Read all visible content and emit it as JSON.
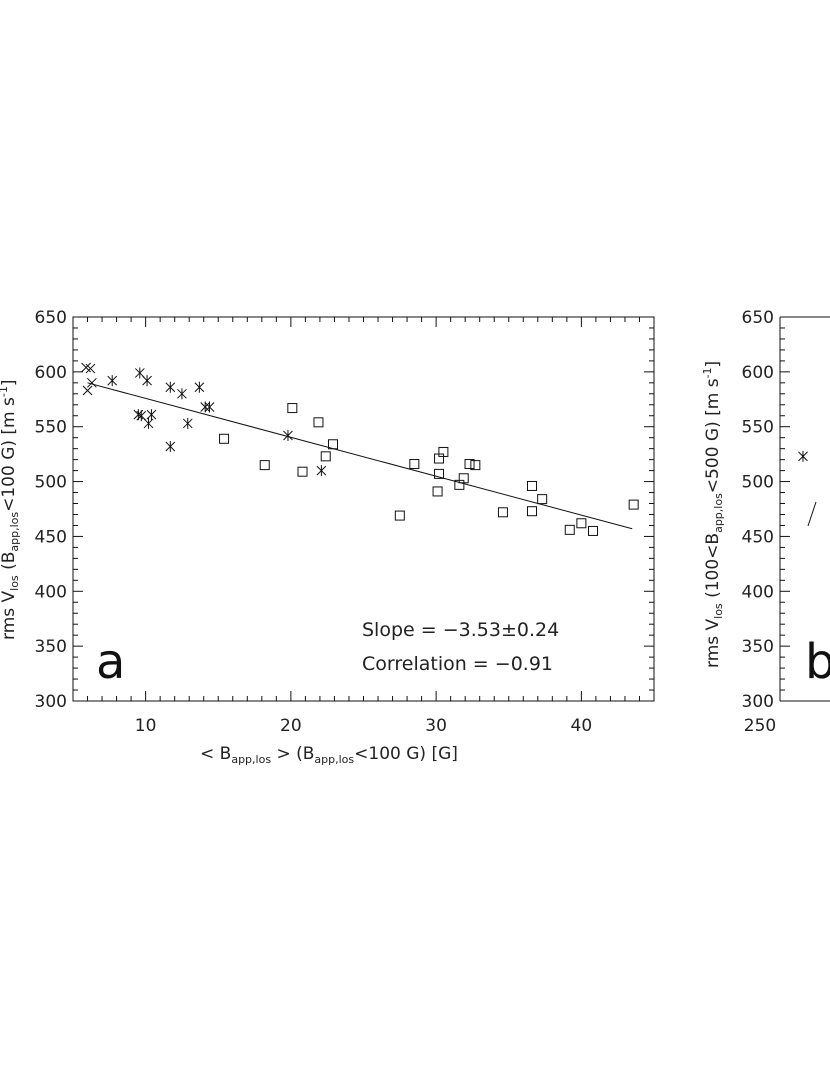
{
  "chart_data": [
    {
      "type": "scatter",
      "panel_label": "a",
      "xlabel": "< B_app,los > (B_app,los<100 G) [G]",
      "ylabel": "rms V_los (B_app,los<100 G) [m s^-1]",
      "xlim": [
        5,
        45
      ],
      "ylim": [
        300,
        650
      ],
      "x_ticks": [
        10,
        20,
        30,
        40
      ],
      "y_ticks": [
        300,
        350,
        400,
        450,
        500,
        550,
        600,
        650
      ],
      "grid": false,
      "series": [
        {
          "marker": "x",
          "points": [
            [
              5.9,
              604
            ],
            [
              6.2,
              603
            ],
            [
              6.0,
              583
            ],
            [
              6.3,
              590
            ]
          ]
        },
        {
          "marker": "asterisk",
          "points": [
            [
              7.7,
              592
            ],
            [
              9.6,
              599
            ],
            [
              10.1,
              592
            ],
            [
              9.5,
              561
            ],
            [
              9.7,
              560
            ],
            [
              10.4,
              561
            ],
            [
              10.2,
              553
            ],
            [
              11.7,
              586
            ],
            [
              12.5,
              580
            ],
            [
              11.7,
              532
            ],
            [
              12.9,
              553
            ],
            [
              13.7,
              586
            ],
            [
              14.1,
              568
            ],
            [
              14.4,
              568
            ],
            [
              19.8,
              542
            ],
            [
              22.1,
              510
            ]
          ]
        },
        {
          "marker": "square",
          "points": [
            [
              15.4,
              539
            ],
            [
              18.2,
              515
            ],
            [
              20.1,
              567
            ],
            [
              20.8,
              509
            ],
            [
              21.9,
              554
            ],
            [
              22.4,
              523
            ],
            [
              22.9,
              534
            ],
            [
              27.5,
              469
            ],
            [
              28.5,
              516
            ],
            [
              30.1,
              491
            ],
            [
              30.2,
              507
            ],
            [
              30.2,
              521
            ],
            [
              30.5,
              527
            ],
            [
              31.6,
              497
            ],
            [
              31.9,
              503
            ],
            [
              32.3,
              516
            ],
            [
              32.7,
              515
            ],
            [
              34.6,
              472
            ],
            [
              36.6,
              496
            ],
            [
              36.6,
              473
            ],
            [
              37.3,
              484
            ],
            [
              39.2,
              456
            ],
            [
              40.0,
              462
            ],
            [
              40.8,
              455
            ],
            [
              43.6,
              479
            ]
          ]
        }
      ],
      "fit_line": {
        "x": [
          6.0,
          43.5
        ],
        "y": [
          590,
          457
        ]
      },
      "annotations": [
        "Slope = −3.53±0.24",
        "Correlation = −0.91"
      ]
    },
    {
      "type": "scatter",
      "panel_label": "b",
      "xlabel": "",
      "ylabel": "rms V_los (100<B_app,los<500 G) [m s^-1]",
      "y_ticks": [
        300,
        350,
        400,
        450,
        500,
        550,
        600,
        650
      ],
      "x_ticks_visible": [
        250
      ],
      "ylim": [
        300,
        650
      ],
      "series": [
        {
          "marker": "asterisk",
          "points_visible": [
            [
              258,
              523
            ]
          ]
        }
      ]
    }
  ],
  "labels": {
    "a_annotation_slope": "Slope = −3.53±0.24",
    "a_annotation_corr": "Correlation = −0.91",
    "a_letter": "a",
    "b_letter": "b",
    "a_xlabel_open": "<",
    "a_xlabel_B": "B",
    "a_xlabel_sub1": "app,los",
    "a_xlabel_mid": "> (B",
    "a_xlabel_sub2": "app,los",
    "a_xlabel_end": "<100 G) [G]",
    "a_ylabel_pre": "rms V",
    "a_ylabel_sub1": "los",
    "a_ylabel_mid": "(B",
    "a_ylabel_sub2": "app,los",
    "a_ylabel_end": "<100 G) [m s",
    "a_ylabel_sup": "-1",
    "a_ylabel_close": "]",
    "b_ylabel_pre": "rms V",
    "b_ylabel_sub1": "los",
    "b_ylabel_mid": "(100<B",
    "b_ylabel_sub2": "app,los",
    "b_ylabel_end": "<500 G) [m s",
    "b_ylabel_sup": "-1",
    "b_ylabel_close": "]",
    "b_xtick_250": "250"
  }
}
